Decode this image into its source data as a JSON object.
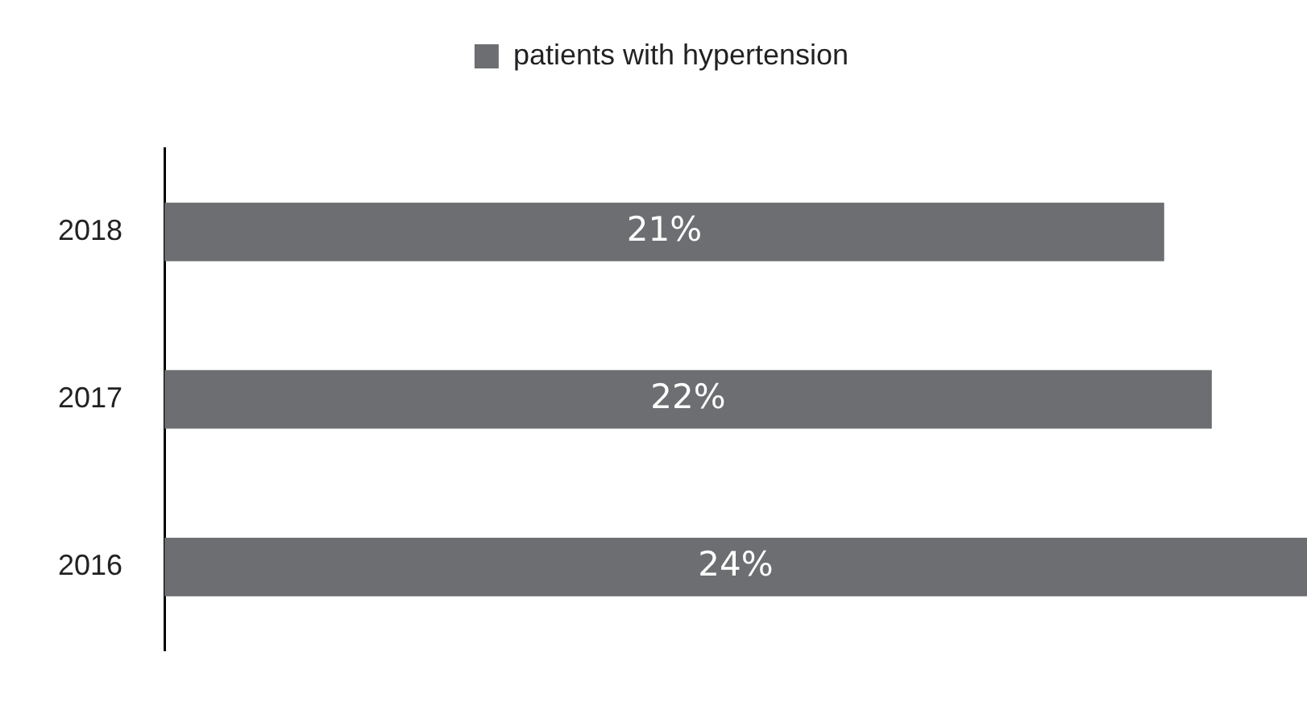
{
  "chart_data": {
    "type": "bar",
    "orientation": "horizontal",
    "categories": [
      "2018",
      "2017",
      "2016"
    ],
    "series": [
      {
        "name": "patients with hypertension",
        "color": "#6d6e71",
        "values": [
          21,
          22,
          24
        ],
        "value_labels": [
          "21%",
          "22%",
          "24%"
        ]
      }
    ],
    "xlim": [
      0,
      24
    ],
    "legend": "top",
    "tick_labels": "y"
  }
}
